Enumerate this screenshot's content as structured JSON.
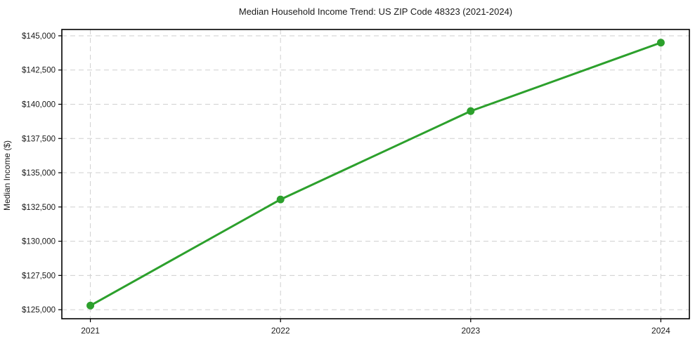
{
  "figure": {
    "background": "#ffffff"
  },
  "chart_data": {
    "type": "line",
    "title": "Median Household Income Trend: US ZIP Code 48323 (2021-2024)",
    "xlabel": "",
    "ylabel": "Median Income ($)",
    "x": [
      2021,
      2022,
      2023,
      2024
    ],
    "x_tick_labels": [
      "2021",
      "2022",
      "2023",
      "2024"
    ],
    "series": [
      {
        "values": [
          125300,
          133050,
          139500,
          144500
        ],
        "color": "#2ca02c",
        "marker": "circle"
      }
    ],
    "y_ticks": [
      125000,
      127500,
      130000,
      132500,
      135000,
      137500,
      140000,
      142500,
      145000
    ],
    "y_tick_labels": [
      "$125,000",
      "$127,500",
      "$130,000",
      "$132,500",
      "$135,000",
      "$137,500",
      "$140,000",
      "$142,500",
      "$145,000"
    ],
    "xlim": [
      2020.85,
      2024.15
    ],
    "ylim": [
      124340,
      145460
    ],
    "grid": {
      "show": true,
      "style": "dashed",
      "color": "#cfcfcf"
    },
    "legend": {
      "show": false
    }
  },
  "styles": {
    "line_color": "#2ca02c",
    "marker_color": "#2ca02c",
    "grid_color": "#cfcfcf",
    "spine_color": "#000000",
    "text_color": "#1a1a1a",
    "background_color": "#ffffff"
  }
}
